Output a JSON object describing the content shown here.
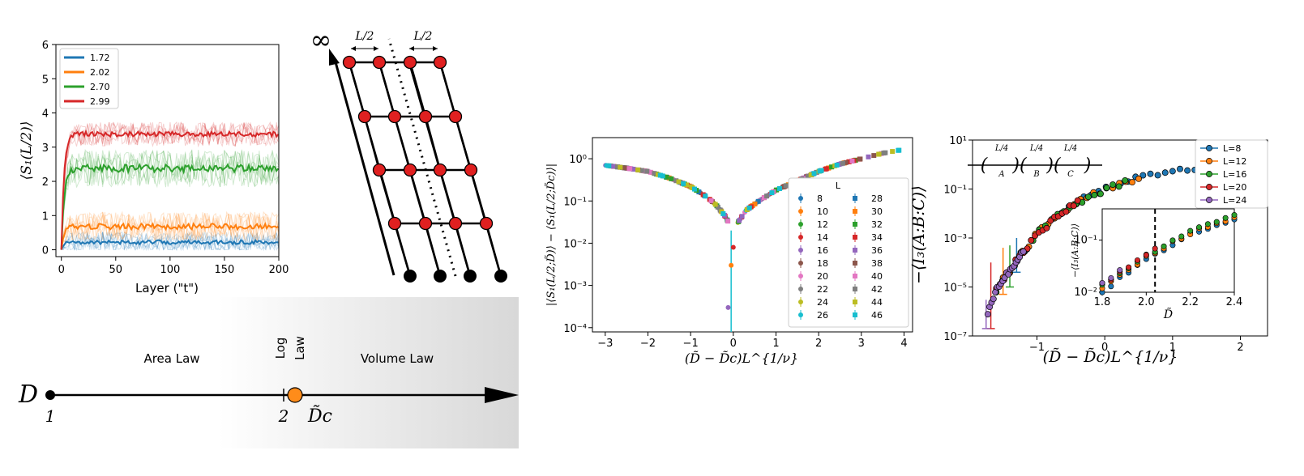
{
  "chart_data": [
    {
      "panel": "a",
      "type": "line",
      "xlabel": "Layer (\"t\")",
      "ylabel": "⟨S₁(L/2)⟩",
      "xlim": [
        -5,
        200
      ],
      "ylim": [
        -0.2,
        6
      ],
      "xticks": [
        "0",
        "50",
        "100",
        "150",
        "200"
      ],
      "yticks": [
        "0",
        "1",
        "2",
        "3",
        "4",
        "5",
        "6"
      ],
      "legend_position": "top-left",
      "series": [
        {
          "name": "1.72",
          "color": "#1f77b4",
          "plateau": 0.22,
          "noise": 0.12
        },
        {
          "name": "2.02",
          "color": "#ff7f0e",
          "plateau": 0.68,
          "noise": 0.17
        },
        {
          "name": "2.70",
          "color": "#2ca02c",
          "plateau": 2.38,
          "noise": 0.22
        },
        {
          "name": "2.99",
          "color": "#d62728",
          "plateau": 3.38,
          "noise": 0.14
        }
      ]
    },
    {
      "panel": "b",
      "type": "scatter",
      "xlabel": "(D̃ − D̃c)L^{1/ν}",
      "ylabel": "|⟨S₁(L/2;D̃)⟩ − ⟨S₁(L/2;D̃c)⟩|",
      "xlim": [
        -3.3,
        4.2
      ],
      "ylim_log10": [
        -4.1,
        0.5
      ],
      "xticks": [
        "−3",
        "−2",
        "−1",
        "0",
        "1",
        "2",
        "3",
        "4"
      ],
      "yticks": [
        "10⁰",
        "10⁻¹",
        "10⁻²",
        "10⁻³",
        "10⁻⁴"
      ],
      "legend_title": "L",
      "legend_position": "lower-right",
      "series": [
        {
          "name": "8",
          "color": "#1f77b4"
        },
        {
          "name": "10",
          "color": "#ff7f0e"
        },
        {
          "name": "12",
          "color": "#2ca02c"
        },
        {
          "name": "14",
          "color": "#d62728"
        },
        {
          "name": "16",
          "color": "#9467bd"
        },
        {
          "name": "18",
          "color": "#8c564b"
        },
        {
          "name": "20",
          "color": "#e377c2"
        },
        {
          "name": "22",
          "color": "#7f7f7f"
        },
        {
          "name": "24",
          "color": "#bcbd22"
        },
        {
          "name": "26",
          "color": "#17becf"
        },
        {
          "name": "28",
          "color": "#1f77b4"
        },
        {
          "name": "30",
          "color": "#ff7f0e"
        },
        {
          "name": "32",
          "color": "#2ca02c"
        },
        {
          "name": "34",
          "color": "#d62728"
        },
        {
          "name": "36",
          "color": "#9467bd"
        },
        {
          "name": "38",
          "color": "#8c564b"
        },
        {
          "name": "40",
          "color": "#e377c2"
        },
        {
          "name": "42",
          "color": "#7f7f7f"
        },
        {
          "name": "44",
          "color": "#bcbd22"
        },
        {
          "name": "46",
          "color": "#17becf"
        }
      ],
      "left_branch": [
        [
          -3.0,
          0.7
        ],
        [
          -2.5,
          0.6
        ],
        [
          -2.0,
          0.5
        ],
        [
          -1.5,
          0.35
        ],
        [
          -1.0,
          0.22
        ],
        [
          -0.6,
          0.12
        ],
        [
          -0.4,
          0.08
        ],
        [
          -0.2,
          0.045
        ],
        [
          -0.1,
          0.03
        ]
      ],
      "right_branch": [
        [
          0.1,
          0.03
        ],
        [
          0.3,
          0.06
        ],
        [
          0.6,
          0.1
        ],
        [
          1.0,
          0.18
        ],
        [
          1.5,
          0.3
        ],
        [
          2.0,
          0.5
        ],
        [
          2.5,
          0.75
        ],
        [
          3.0,
          1.0
        ],
        [
          3.5,
          1.35
        ],
        [
          3.9,
          1.6
        ]
      ],
      "outliers": [
        [
          -0.12,
          0.0003
        ],
        [
          0.0,
          0.008
        ],
        [
          -0.05,
          0.003
        ]
      ]
    },
    {
      "panel": "c",
      "type": "scatter",
      "xlabel": "(D̃ − D̃c)L^{1/ν}",
      "ylabel": "−⟨I₃(A:B:C)⟩",
      "xlim": [
        -1.95,
        2.4
      ],
      "ylim_log10": [
        -7,
        1
      ],
      "xticks": [
        "−1",
        "0",
        "1",
        "2"
      ],
      "yticks": [
        "10¹",
        "10⁻¹",
        "10⁻³",
        "10⁻⁵",
        "10⁻⁷"
      ],
      "legend_position": "top-right",
      "series": [
        {
          "name": "L=8",
          "color": "#1f77b4"
        },
        {
          "name": "L=12",
          "color": "#ff7f0e"
        },
        {
          "name": "L=16",
          "color": "#2ca02c"
        },
        {
          "name": "L=20",
          "color": "#d62728"
        },
        {
          "name": "L=24",
          "color": "#9467bd"
        }
      ],
      "curve": [
        [
          -1.75,
          6e-07
        ],
        [
          -1.6,
          8e-06
        ],
        [
          -1.4,
          5e-05
        ],
        [
          -1.2,
          0.0003
        ],
        [
          -1.0,
          0.0015
        ],
        [
          -0.7,
          0.008
        ],
        [
          -0.4,
          0.03
        ],
        [
          0.0,
          0.1
        ],
        [
          0.5,
          0.28
        ],
        [
          1.0,
          0.5
        ],
        [
          1.5,
          0.7
        ],
        [
          2.0,
          0.85
        ],
        [
          2.2,
          0.9
        ]
      ],
      "scheme": {
        "segments": [
          "L/4",
          "L/4",
          "L/4"
        ],
        "letters": [
          "A",
          "B",
          "C"
        ]
      },
      "inset": {
        "xlabel": "D̃",
        "ylabel": "−⟨I₃(A:B:C)⟩",
        "xlim": [
          1.8,
          2.4
        ],
        "ylim_log10": [
          -2,
          -0.4
        ],
        "xticks": [
          "1.8",
          "2.0",
          "2.2",
          "2.4"
        ],
        "yticks": [
          "10⁻¹",
          "10⁻²"
        ],
        "critical_x": 2.04,
        "curve": [
          [
            1.8,
            0.013
          ],
          [
            1.9,
            0.025
          ],
          [
            2.0,
            0.05
          ],
          [
            2.1,
            0.09
          ],
          [
            2.2,
            0.15
          ],
          [
            2.3,
            0.22
          ],
          [
            2.4,
            0.3
          ]
        ]
      }
    }
  ],
  "lattice": {
    "infinity_label": "∞",
    "half_labels": [
      "L/2",
      "L/2"
    ]
  },
  "phase_diagram": {
    "axis_label": "D",
    "tick_1": "1",
    "tick_2": "2",
    "critical_label": "D̃c",
    "area_law": "Area Law",
    "log_law": "Log\nLaw",
    "volume_law": "Volume Law"
  }
}
